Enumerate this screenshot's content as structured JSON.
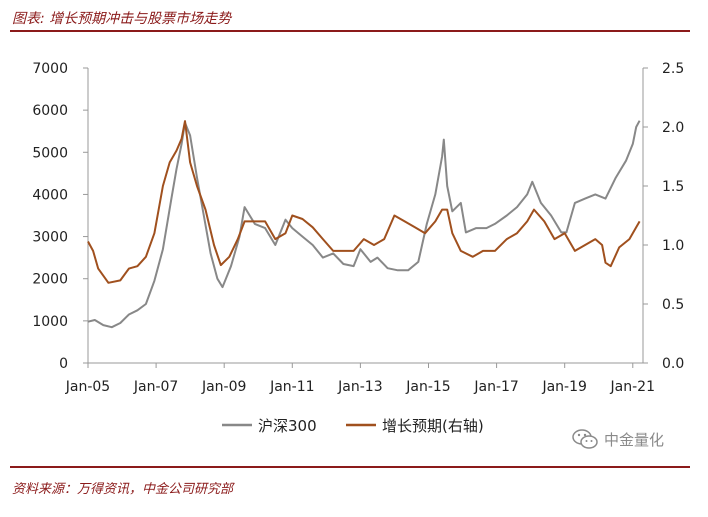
{
  "header": {
    "title": "图表: 增长预期冲击与股票市场走势"
  },
  "footer": {
    "source": "资料来源：万得资讯，中金公司研究部"
  },
  "watermark": {
    "text": "中金量化"
  },
  "chart_data": {
    "type": "line",
    "title": "增长预期冲击与股票市场走势",
    "x_tick_labels": [
      "Jan-05",
      "Jan-07",
      "Jan-09",
      "Jan-11",
      "Jan-13",
      "Jan-15",
      "Jan-17",
      "Jan-19",
      "Jan-21"
    ],
    "x_range": [
      2005.0,
      2021.3
    ],
    "y_left": {
      "range": [
        0,
        7000
      ],
      "ticks": [
        0,
        1000,
        2000,
        3000,
        4000,
        5000,
        6000,
        7000
      ]
    },
    "y_right": {
      "range": [
        0.0,
        2.5
      ],
      "ticks": [
        "0.0",
        "0.5",
        "1.0",
        "1.5",
        "2.0",
        "2.5"
      ]
    },
    "series": [
      {
        "name": "沪深300",
        "axis": "left",
        "color": "#888888",
        "x": [
          2005.0,
          2005.2,
          2005.45,
          2005.7,
          2005.95,
          2006.2,
          2006.45,
          2006.7,
          2006.95,
          2007.2,
          2007.45,
          2007.6,
          2007.75,
          2007.85,
          2008.0,
          2008.2,
          2008.4,
          2008.6,
          2008.8,
          2008.95,
          2009.2,
          2009.45,
          2009.6,
          2009.9,
          2010.2,
          2010.5,
          2010.8,
          2011.0,
          2011.3,
          2011.6,
          2011.9,
          2012.2,
          2012.5,
          2012.8,
          2013.0,
          2013.3,
          2013.5,
          2013.8,
          2014.1,
          2014.4,
          2014.7,
          2014.95,
          2015.2,
          2015.4,
          2015.45,
          2015.55,
          2015.7,
          2015.95,
          2016.1,
          2016.4,
          2016.7,
          2016.95,
          2017.3,
          2017.6,
          2017.9,
          2018.05,
          2018.3,
          2018.6,
          2018.9,
          2019.05,
          2019.3,
          2019.6,
          2019.9,
          2020.2,
          2020.5,
          2020.8,
          2021.0,
          2021.1,
          2021.2
        ],
        "values": [
          980,
          1020,
          900,
          850,
          950,
          1150,
          1250,
          1400,
          1950,
          2700,
          3900,
          4600,
          5200,
          5700,
          5400,
          4400,
          3500,
          2600,
          2000,
          1800,
          2300,
          3000,
          3700,
          3300,
          3200,
          2800,
          3400,
          3200,
          3000,
          2800,
          2500,
          2600,
          2350,
          2300,
          2700,
          2400,
          2500,
          2250,
          2200,
          2200,
          2400,
          3300,
          4000,
          4900,
          5300,
          4200,
          3600,
          3800,
          3100,
          3200,
          3200,
          3300,
          3500,
          3700,
          4000,
          4300,
          3800,
          3500,
          3100,
          3100,
          3800,
          3900,
          4000,
          3900,
          4400,
          4800,
          5200,
          5600,
          5750
        ]
      },
      {
        "name": "增长预期(右轴)",
        "axis": "right",
        "color": "#a0501e",
        "x": [
          2005.0,
          2005.15,
          2005.3,
          2005.6,
          2005.95,
          2006.2,
          2006.45,
          2006.7,
          2006.95,
          2007.2,
          2007.4,
          2007.6,
          2007.75,
          2007.85,
          2008.0,
          2008.2,
          2008.45,
          2008.7,
          2008.9,
          2009.15,
          2009.4,
          2009.6,
          2009.9,
          2010.2,
          2010.5,
          2010.8,
          2011.0,
          2011.3,
          2011.6,
          2011.9,
          2012.2,
          2012.5,
          2012.8,
          2013.1,
          2013.4,
          2013.7,
          2014.0,
          2014.3,
          2014.6,
          2014.9,
          2015.2,
          2015.4,
          2015.55,
          2015.7,
          2015.95,
          2016.3,
          2016.6,
          2016.95,
          2017.3,
          2017.6,
          2017.9,
          2018.1,
          2018.4,
          2018.7,
          2019.0,
          2019.3,
          2019.6,
          2019.9,
          2020.1,
          2020.2,
          2020.35,
          2020.6,
          2020.9,
          2021.1,
          2021.2
        ],
        "values": [
          1.03,
          0.95,
          0.8,
          0.68,
          0.7,
          0.8,
          0.82,
          0.9,
          1.1,
          1.5,
          1.7,
          1.8,
          1.9,
          2.05,
          1.7,
          1.5,
          1.3,
          1.0,
          0.83,
          0.9,
          1.05,
          1.2,
          1.2,
          1.2,
          1.05,
          1.1,
          1.25,
          1.22,
          1.15,
          1.05,
          0.95,
          0.95,
          0.95,
          1.05,
          1.0,
          1.05,
          1.25,
          1.2,
          1.15,
          1.1,
          1.2,
          1.3,
          1.3,
          1.1,
          0.95,
          0.9,
          0.95,
          0.95,
          1.05,
          1.1,
          1.2,
          1.3,
          1.2,
          1.05,
          1.1,
          0.95,
          1.0,
          1.05,
          1.0,
          0.85,
          0.82,
          0.98,
          1.05,
          1.15,
          1.2
        ]
      }
    ],
    "legend": {
      "position": "bottom",
      "entries": [
        "沪深300",
        "增长预期(右轴)"
      ]
    }
  }
}
